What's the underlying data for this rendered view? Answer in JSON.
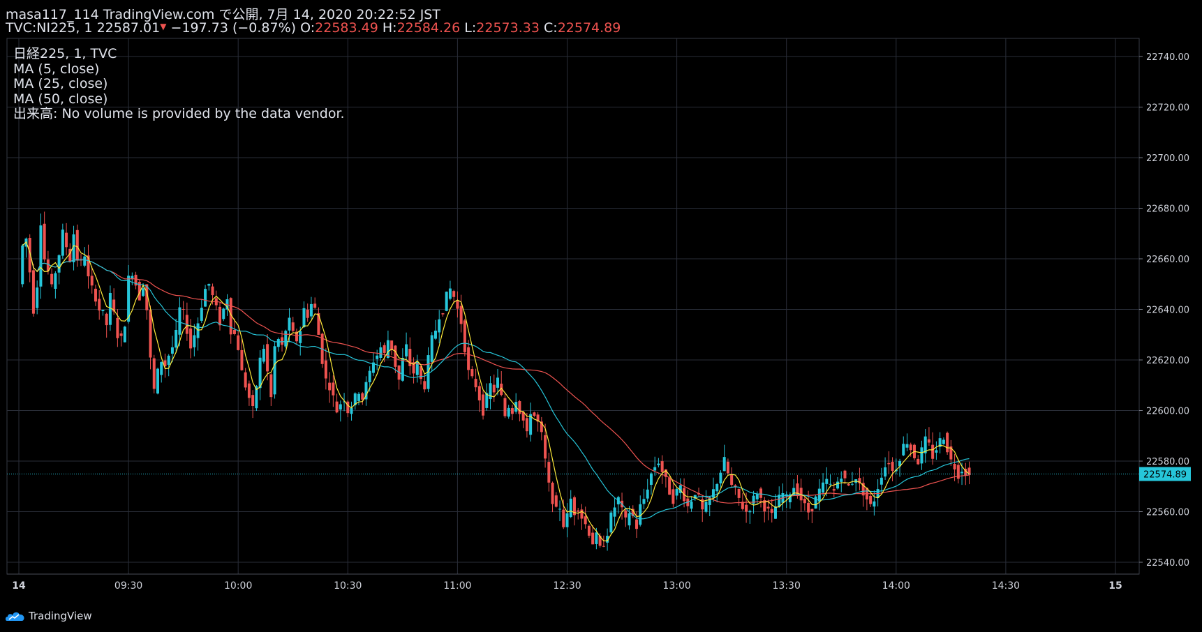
{
  "header": {
    "line1": "masa117_114 TradingView.com で公開, 7月 14, 2020 20:22:52 JST",
    "symbol_prefix": "TVC:NI225, 1",
    "price": "22587.01",
    "change": "−197.73 (−0.87%)",
    "o_label": "O:",
    "o": "22583.49",
    "h_label": "H:",
    "h": "22584.26",
    "l_label": "L:",
    "l": "22573.33",
    "c_label": "C:",
    "c": "22574.89"
  },
  "legend": {
    "line1": "日経225, 1, TVC",
    "line2": "MA (5, close)",
    "line3": "MA (25, close)",
    "line4": "MA (50, close)",
    "line5": "出来高: No volume is provided by the data vendor."
  },
  "brand": "TradingView",
  "colors": {
    "up": "#26c6da",
    "down": "#ef5350",
    "ma5": "#ffeb3b",
    "ma25": "#26c6da",
    "ma50": "#ef5350",
    "grid": "#2a2e39",
    "axis_text": "#d1d4dc"
  },
  "chart_data": {
    "type": "candlestick",
    "ylim": [
      22535,
      22745
    ],
    "yticks": [
      22540,
      22560,
      22580,
      22600,
      22620,
      22640,
      22660,
      22680,
      22700,
      22720,
      22740
    ],
    "xticks": [
      {
        "t": 0,
        "label": "14",
        "bold": true
      },
      {
        "t": 30,
        "label": "09:30"
      },
      {
        "t": 60,
        "label": "10:00"
      },
      {
        "t": 90,
        "label": "10:30"
      },
      {
        "t": 120,
        "label": "11:00"
      },
      {
        "t": 150,
        "label": "12:30"
      },
      {
        "t": 180,
        "label": "13:00"
      },
      {
        "t": 210,
        "label": "13:30"
      },
      {
        "t": 240,
        "label": "14:00"
      },
      {
        "t": 270,
        "label": "14:30"
      },
      {
        "t": 300,
        "label": "15",
        "bold": true
      }
    ],
    "last_price": 22574.89,
    "last_price_label": "22574.89",
    "close_path": [
      [
        0,
        22650
      ],
      [
        1,
        22665
      ],
      [
        2,
        22668
      ],
      [
        3,
        22655
      ],
      [
        4,
        22640
      ],
      [
        5,
        22650
      ],
      [
        6,
        22675
      ],
      [
        7,
        22660
      ],
      [
        8,
        22655
      ],
      [
        9,
        22648
      ],
      [
        10,
        22655
      ],
      [
        11,
        22662
      ],
      [
        12,
        22670
      ],
      [
        13,
        22665
      ],
      [
        14,
        22660
      ],
      [
        15,
        22670
      ],
      [
        16,
        22660
      ],
      [
        17,
        22658
      ],
      [
        18,
        22662
      ],
      [
        19,
        22652
      ],
      [
        20,
        22648
      ],
      [
        21,
        22645
      ],
      [
        22,
        22640
      ],
      [
        23,
        22638
      ],
      [
        24,
        22634
      ],
      [
        25,
        22645
      ],
      [
        26,
        22638
      ],
      [
        27,
        22630
      ],
      [
        28,
        22628
      ],
      [
        29,
        22635
      ],
      [
        30,
        22652
      ],
      [
        31,
        22655
      ],
      [
        32,
        22650
      ],
      [
        33,
        22645
      ],
      [
        34,
        22650
      ],
      [
        35,
        22640
      ],
      [
        36,
        22620
      ],
      [
        37,
        22608
      ],
      [
        38,
        22615
      ],
      [
        39,
        22620
      ],
      [
        40,
        22618
      ],
      [
        41,
        22622
      ],
      [
        42,
        22625
      ],
      [
        43,
        22630
      ],
      [
        44,
        22640
      ],
      [
        45,
        22638
      ],
      [
        46,
        22632
      ],
      [
        47,
        22625
      ],
      [
        48,
        22630
      ],
      [
        49,
        22635
      ],
      [
        50,
        22642
      ],
      [
        51,
        22648
      ],
      [
        52,
        22650
      ],
      [
        53,
        22645
      ],
      [
        54,
        22640
      ],
      [
        55,
        22635
      ],
      [
        56,
        22640
      ],
      [
        57,
        22645
      ],
      [
        58,
        22632
      ],
      [
        59,
        22630
      ],
      [
        60,
        22625
      ],
      [
        61,
        22615
      ],
      [
        62,
        22610
      ],
      [
        63,
        22605
      ],
      [
        64,
        22600
      ],
      [
        65,
        22610
      ],
      [
        66,
        22620
      ],
      [
        67,
        22625
      ],
      [
        68,
        22615
      ],
      [
        69,
        22605
      ],
      [
        70,
        22625
      ],
      [
        71,
        22628
      ],
      [
        72,
        22625
      ],
      [
        73,
        22632
      ],
      [
        74,
        22635
      ],
      [
        75,
        22630
      ],
      [
        76,
        22628
      ],
      [
        77,
        22632
      ],
      [
        78,
        22640
      ],
      [
        79,
        22638
      ],
      [
        80,
        22642
      ],
      [
        81,
        22640
      ],
      [
        82,
        22630
      ],
      [
        83,
        22620
      ],
      [
        84,
        22612
      ],
      [
        85,
        22610
      ],
      [
        86,
        22605
      ],
      [
        87,
        22600
      ],
      [
        88,
        22603
      ],
      [
        89,
        22605
      ],
      [
        90,
        22600
      ],
      [
        91,
        22602
      ],
      [
        92,
        22605
      ],
      [
        93,
        22608
      ],
      [
        94,
        22605
      ],
      [
        95,
        22610
      ],
      [
        96,
        22615
      ],
      [
        97,
        22620
      ],
      [
        98,
        22622
      ],
      [
        99,
        22625
      ],
      [
        100,
        22622
      ],
      [
        101,
        22628
      ],
      [
        102,
        22625
      ],
      [
        103,
        22618
      ],
      [
        104,
        22612
      ],
      [
        105,
        22620
      ],
      [
        106,
        22625
      ],
      [
        107,
        22618
      ],
      [
        108,
        22615
      ],
      [
        109,
        22618
      ],
      [
        110,
        22612
      ],
      [
        111,
        22610
      ],
      [
        112,
        22620
      ],
      [
        113,
        22628
      ],
      [
        114,
        22632
      ],
      [
        115,
        22638
      ],
      [
        116,
        22640
      ],
      [
        117,
        22645
      ],
      [
        118,
        22648
      ],
      [
        119,
        22645
      ],
      [
        120,
        22640
      ],
      [
        121,
        22635
      ],
      [
        122,
        22625
      ],
      [
        123,
        22615
      ],
      [
        124,
        22612
      ],
      [
        125,
        22610
      ],
      [
        126,
        22605
      ],
      [
        127,
        22600
      ],
      [
        128,
        22605
      ],
      [
        129,
        22610
      ],
      [
        130,
        22608
      ],
      [
        131,
        22612
      ],
      [
        132,
        22605
      ],
      [
        133,
        22598
      ],
      [
        134,
        22602
      ],
      [
        135,
        22600
      ],
      [
        136,
        22605
      ],
      [
        137,
        22600
      ],
      [
        138,
        22596
      ],
      [
        139,
        22590
      ],
      [
        140,
        22600
      ],
      [
        141,
        22598
      ],
      [
        142,
        22595
      ],
      [
        143,
        22590
      ],
      [
        144,
        22580
      ],
      [
        145,
        22570
      ],
      [
        146,
        22565
      ],
      [
        147,
        22560
      ],
      [
        148,
        22562
      ],
      [
        149,
        22555
      ],
      [
        150,
        22558
      ],
      [
        151,
        22565
      ],
      [
        152,
        22560
      ],
      [
        153,
        22562
      ],
      [
        154,
        22558
      ],
      [
        155,
        22555
      ],
      [
        156,
        22552
      ],
      [
        157,
        22548
      ],
      [
        158,
        22550
      ],
      [
        159,
        22545
      ],
      [
        160,
        22548
      ],
      [
        161,
        22552
      ],
      [
        162,
        22558
      ],
      [
        163,
        22562
      ],
      [
        164,
        22565
      ],
      [
        165,
        22560
      ],
      [
        166,
        22556
      ],
      [
        167,
        22560
      ],
      [
        168,
        22558
      ],
      [
        169,
        22554
      ],
      [
        170,
        22562
      ],
      [
        171,
        22565
      ],
      [
        172,
        22570
      ],
      [
        173,
        22575
      ],
      [
        174,
        22578
      ],
      [
        175,
        22580
      ],
      [
        176,
        22576
      ],
      [
        177,
        22572
      ],
      [
        178,
        22568
      ],
      [
        179,
        22565
      ],
      [
        180,
        22568
      ],
      [
        181,
        22570
      ],
      [
        182,
        22566
      ],
      [
        183,
        22562
      ],
      [
        184,
        22565
      ],
      [
        185,
        22568
      ],
      [
        186,
        22565
      ],
      [
        187,
        22560
      ],
      [
        188,
        22562
      ],
      [
        189,
        22565
      ],
      [
        190,
        22568
      ],
      [
        191,
        22572
      ],
      [
        192,
        22576
      ],
      [
        193,
        22580
      ],
      [
        194,
        22575
      ],
      [
        195,
        22570
      ],
      [
        196,
        22568
      ],
      [
        197,
        22565
      ],
      [
        198,
        22562
      ],
      [
        199,
        22560
      ],
      [
        200,
        22562
      ],
      [
        201,
        22565
      ],
      [
        202,
        22568
      ],
      [
        203,
        22565
      ],
      [
        204,
        22562
      ],
      [
        205,
        22560
      ],
      [
        206,
        22558
      ],
      [
        207,
        22562
      ],
      [
        208,
        22565
      ],
      [
        209,
        22567
      ],
      [
        210,
        22565
      ],
      [
        211,
        22568
      ],
      [
        212,
        22570
      ],
      [
        213,
        22568
      ],
      [
        214,
        22565
      ],
      [
        215,
        22562
      ],
      [
        216,
        22560
      ],
      [
        217,
        22562
      ],
      [
        218,
        22565
      ],
      [
        219,
        22568
      ],
      [
        220,
        22570
      ],
      [
        221,
        22572
      ],
      [
        222,
        22570
      ],
      [
        223,
        22568
      ],
      [
        224,
        22572
      ],
      [
        225,
        22575
      ],
      [
        226,
        22572
      ],
      [
        227,
        22570
      ],
      [
        228,
        22572
      ],
      [
        229,
        22574
      ],
      [
        230,
        22570
      ],
      [
        231,
        22568
      ],
      [
        232,
        22565
      ],
      [
        233,
        22562
      ],
      [
        234,
        22565
      ],
      [
        235,
        22570
      ],
      [
        236,
        22575
      ],
      [
        237,
        22578
      ],
      [
        238,
        22580
      ],
      [
        239,
        22576
      ],
      [
        240,
        22578
      ],
      [
        241,
        22582
      ],
      [
        242,
        22586
      ],
      [
        243,
        22588
      ],
      [
        244,
        22585
      ],
      [
        245,
        22582
      ],
      [
        246,
        22580
      ],
      [
        247,
        22584
      ],
      [
        248,
        22588
      ],
      [
        249,
        22586
      ],
      [
        250,
        22582
      ],
      [
        251,
        22585
      ],
      [
        252,
        22588
      ],
      [
        253,
        22590
      ],
      [
        254,
        22585
      ],
      [
        255,
        22580
      ],
      [
        256,
        22578
      ],
      [
        257,
        22575
      ],
      [
        258,
        22577
      ],
      [
        259,
        22576
      ],
      [
        260,
        22574
      ]
    ]
  }
}
